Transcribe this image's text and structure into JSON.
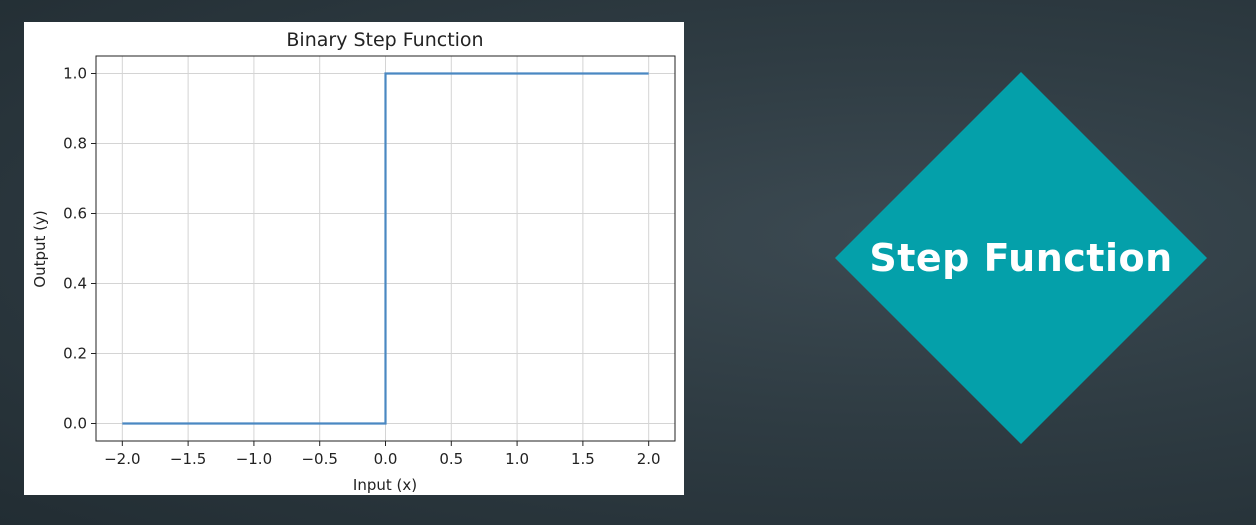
{
  "chart_data": {
    "type": "line",
    "title": "Binary Step Function",
    "xlabel": "Input (x)",
    "ylabel": "Output (y)",
    "xlim": [
      -2.2,
      2.2
    ],
    "ylim": [
      -0.05,
      1.05
    ],
    "xticks": [
      -2.0,
      -1.5,
      -1.0,
      -0.5,
      0.0,
      0.5,
      1.0,
      1.5,
      2.0
    ],
    "xtick_labels": [
      "−2.0",
      "−1.5",
      "−1.0",
      "−0.5",
      "0.0",
      "0.5",
      "1.0",
      "1.5",
      "2.0"
    ],
    "yticks": [
      0.0,
      0.2,
      0.4,
      0.6,
      0.8,
      1.0
    ],
    "ytick_labels": [
      "0.0",
      "0.2",
      "0.4",
      "0.6",
      "0.8",
      "1.0"
    ],
    "grid": true,
    "series": [
      {
        "x": [
          -2.0,
          0.0,
          0.0,
          2.0
        ],
        "y": [
          0.0,
          0.0,
          1.0,
          1.0
        ],
        "color": "#4a88c2"
      }
    ]
  },
  "badge": {
    "label": "Step Function",
    "color": "#04a0aa"
  }
}
